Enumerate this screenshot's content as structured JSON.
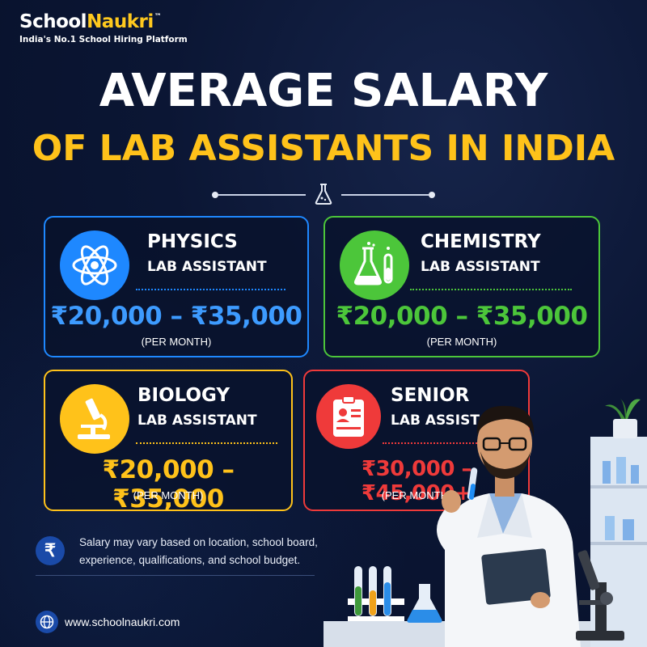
{
  "brand": {
    "name_part1": "School",
    "name_part2": "Naukri",
    "tm": "™",
    "tagline": "India's No.1 School Hiring Platform"
  },
  "headline": {
    "line1": "AVERAGE SALARY",
    "line2": "OF LAB ASSISTANTS IN INDIA"
  },
  "cards": [
    {
      "title": "PHYSICS",
      "subtitle": "LAB ASSISTANT",
      "salary": "₹20,000 – ₹35,000",
      "period": "(PER MONTH)",
      "icon": "atom-icon",
      "accent": "#1e88ff"
    },
    {
      "title": "CHEMISTRY",
      "subtitle": "LAB ASSISTANT",
      "salary": "₹20,000 – ₹35,000",
      "period": "(PER MONTH)",
      "icon": "flask-icon",
      "accent": "#4cc63a"
    },
    {
      "title": "BIOLOGY",
      "subtitle": "LAB ASSISTANT",
      "salary": "₹20,000 – ₹35,000",
      "period": "(PER MONTH)",
      "icon": "microscope-icon",
      "accent": "#ffc21a"
    },
    {
      "title": "SENIOR",
      "subtitle": "LAB ASSISTANT",
      "salary": "₹30,000 – ₹45,000+",
      "period": "(PER MONTH)",
      "icon": "id-badge-icon",
      "accent": "#ef3a3a"
    }
  ],
  "note": {
    "icon": "rupee-icon",
    "text": "Salary may vary based on location, school board, experience, qualifications, and school budget."
  },
  "footer": {
    "icon": "globe-icon",
    "website": "www.schoolnaukri.com"
  },
  "colors": {
    "background": "#0b1634",
    "headline_yellow": "#ffc21a",
    "physics": "#1e88ff",
    "chemistry": "#4cc63a",
    "biology": "#ffc21a",
    "senior": "#ef3a3a"
  }
}
